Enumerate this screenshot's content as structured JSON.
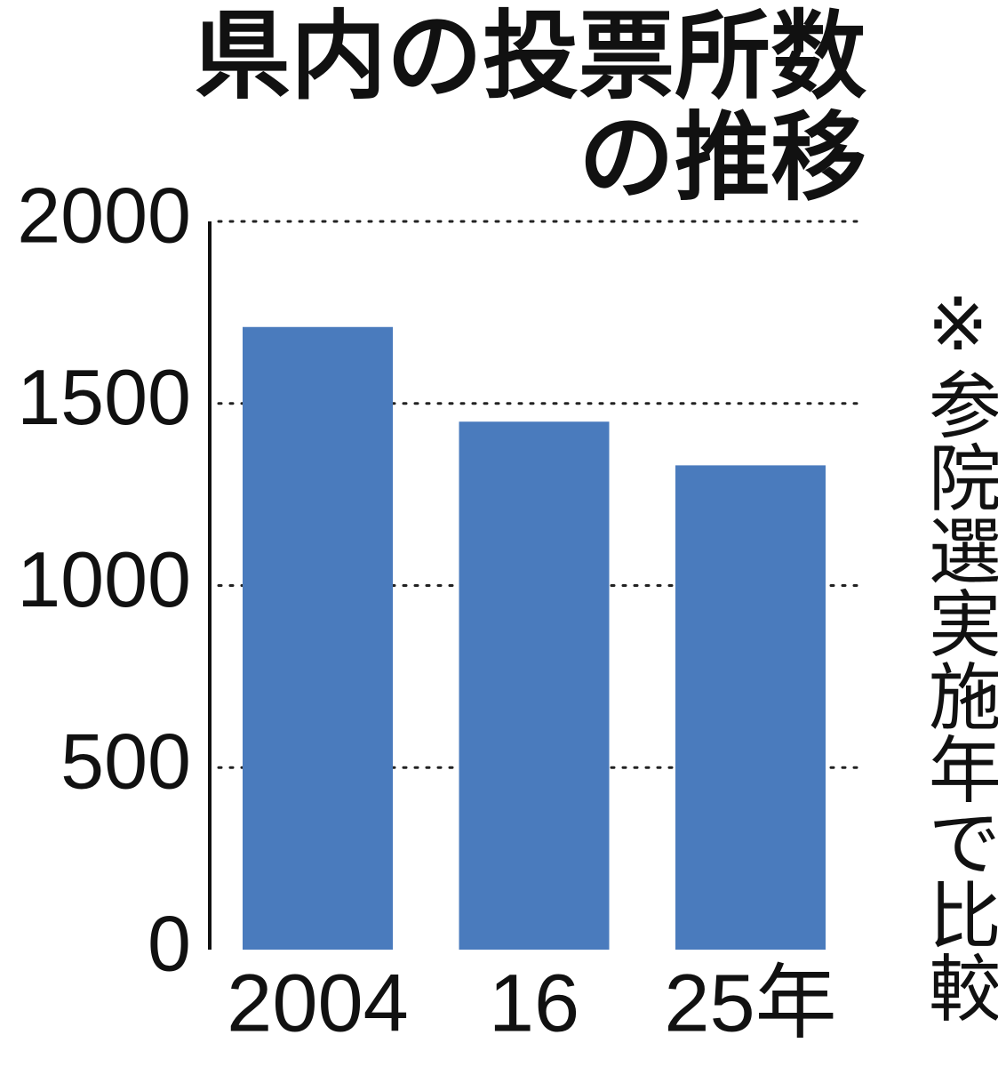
{
  "chart_data": {
    "type": "bar",
    "title": [
      "県内の投票所数",
      "の推移"
    ],
    "note": "※参院選実施年で比較",
    "categories": [
      "2004",
      "16",
      "25年"
    ],
    "values": [
      1710,
      1450,
      1330
    ],
    "color": "#4a7bbd",
    "ylim": [
      0,
      2000
    ],
    "yticks": [
      0,
      500,
      1000,
      1500,
      2000
    ],
    "grid": true
  }
}
